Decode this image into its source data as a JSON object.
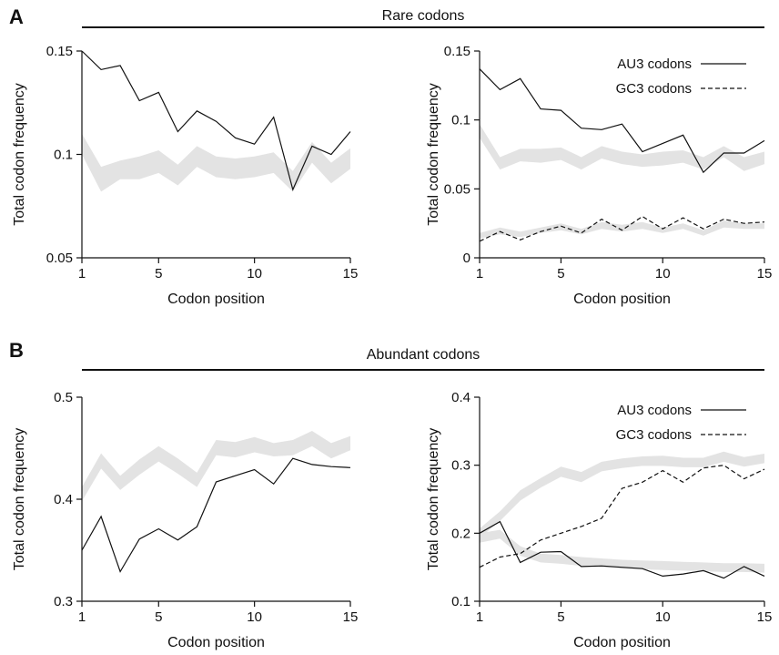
{
  "panels": {
    "A": {
      "letter": "A",
      "section_title": "Rare codons"
    },
    "B": {
      "letter": "B",
      "section_title": "Abundant codons"
    }
  },
  "colors": {
    "line": "#111111",
    "band": "#e3e3e3",
    "axis": "#111111"
  },
  "chart_data": [
    {
      "id": "A-left",
      "type": "line",
      "xlabel": "Codon position",
      "ylabel": "Total codon frequency",
      "xlim": [
        1,
        15
      ],
      "ylim": [
        0.05,
        0.15
      ],
      "xticks": [
        1,
        5,
        10,
        15
      ],
      "xtick_labels": [
        "1",
        "5",
        "10",
        "15"
      ],
      "yticks": [
        0.05,
        0.1,
        0.15
      ],
      "ytick_labels": [
        "0.05",
        "0.1",
        "0.15"
      ],
      "legend": null,
      "series": [
        {
          "style": "solid",
          "x": [
            1,
            2,
            3,
            4,
            5,
            6,
            7,
            8,
            9,
            10,
            11,
            12,
            13,
            14,
            15
          ],
          "y": [
            0.15,
            0.141,
            0.143,
            0.126,
            0.13,
            0.111,
            0.121,
            0.116,
            0.108,
            0.105,
            0.118,
            0.083,
            0.104,
            0.1,
            0.111
          ]
        }
      ],
      "bands": [
        {
          "x": [
            1,
            2,
            3,
            4,
            5,
            6,
            7,
            8,
            9,
            10,
            11,
            12,
            13,
            14,
            15
          ],
          "lower": [
            0.1,
            0.082,
            0.088,
            0.088,
            0.091,
            0.085,
            0.094,
            0.089,
            0.088,
            0.089,
            0.091,
            0.082,
            0.096,
            0.086,
            0.093
          ],
          "upper": [
            0.11,
            0.094,
            0.097,
            0.099,
            0.102,
            0.095,
            0.104,
            0.099,
            0.098,
            0.099,
            0.101,
            0.092,
            0.106,
            0.096,
            0.103
          ]
        }
      ]
    },
    {
      "id": "A-right",
      "type": "line",
      "xlabel": "Codon position",
      "ylabel": "Total codon frequency",
      "xlim": [
        1,
        15
      ],
      "ylim": [
        0,
        0.15
      ],
      "xticks": [
        1,
        5,
        10,
        15
      ],
      "xtick_labels": [
        "1",
        "5",
        "10",
        "15"
      ],
      "yticks": [
        0,
        0.05,
        0.1,
        0.15
      ],
      "ytick_labels": [
        "0",
        "0.05",
        "0.1",
        "0.15"
      ],
      "legend": "top-right",
      "series": [
        {
          "name": "AU3 codons",
          "style": "solid",
          "x": [
            1,
            2,
            3,
            4,
            5,
            6,
            7,
            8,
            9,
            10,
            11,
            12,
            13,
            14,
            15
          ],
          "y": [
            0.137,
            0.122,
            0.13,
            0.108,
            0.107,
            0.094,
            0.093,
            0.097,
            0.077,
            0.083,
            0.089,
            0.062,
            0.076,
            0.076,
            0.085
          ]
        },
        {
          "name": "GC3 codons",
          "style": "dashed",
          "x": [
            1,
            2,
            3,
            4,
            5,
            6,
            7,
            8,
            9,
            10,
            11,
            12,
            13,
            14,
            15
          ],
          "y": [
            0.012,
            0.019,
            0.013,
            0.019,
            0.023,
            0.018,
            0.028,
            0.02,
            0.03,
            0.021,
            0.029,
            0.021,
            0.028,
            0.025,
            0.026
          ]
        }
      ],
      "bands": [
        {
          "x": [
            1,
            2,
            3,
            4,
            5,
            6,
            7,
            8,
            9,
            10,
            11,
            12,
            13,
            14,
            15
          ],
          "lower": [
            0.087,
            0.064,
            0.07,
            0.069,
            0.071,
            0.064,
            0.072,
            0.068,
            0.066,
            0.067,
            0.069,
            0.064,
            0.073,
            0.063,
            0.068
          ],
          "upper": [
            0.097,
            0.073,
            0.079,
            0.079,
            0.08,
            0.073,
            0.081,
            0.077,
            0.075,
            0.077,
            0.078,
            0.073,
            0.081,
            0.073,
            0.077
          ]
        },
        {
          "x": [
            1,
            2,
            3,
            4,
            5,
            6,
            7,
            8,
            9,
            10,
            11,
            12,
            13,
            14,
            15
          ],
          "lower": [
            0.014,
            0.017,
            0.015,
            0.018,
            0.02,
            0.017,
            0.021,
            0.019,
            0.021,
            0.018,
            0.021,
            0.016,
            0.022,
            0.021,
            0.021
          ],
          "upper": [
            0.018,
            0.022,
            0.019,
            0.022,
            0.025,
            0.021,
            0.026,
            0.024,
            0.026,
            0.022,
            0.025,
            0.02,
            0.027,
            0.025,
            0.025
          ]
        }
      ]
    },
    {
      "id": "B-left",
      "type": "line",
      "xlabel": "Codon position",
      "ylabel": "Total codon frequency",
      "xlim": [
        1,
        15
      ],
      "ylim": [
        0.3,
        0.5
      ],
      "xticks": [
        1,
        5,
        10,
        15
      ],
      "xtick_labels": [
        "1",
        "5",
        "10",
        "15"
      ],
      "yticks": [
        0.3,
        0.4,
        0.5
      ],
      "ytick_labels": [
        "0.3",
        "0.4",
        "0.5"
      ],
      "legend": null,
      "series": [
        {
          "style": "solid",
          "x": [
            1,
            2,
            3,
            4,
            5,
            6,
            7,
            8,
            9,
            10,
            11,
            12,
            13,
            14,
            15
          ],
          "y": [
            0.35,
            0.383,
            0.329,
            0.361,
            0.371,
            0.36,
            0.373,
            0.417,
            0.423,
            0.429,
            0.415,
            0.44,
            0.434,
            0.432,
            0.431
          ]
        }
      ],
      "bands": [
        {
          "x": [
            1,
            2,
            3,
            4,
            5,
            6,
            7,
            8,
            9,
            10,
            11,
            12,
            13,
            14,
            15
          ],
          "lower": [
            0.398,
            0.43,
            0.409,
            0.424,
            0.437,
            0.425,
            0.412,
            0.443,
            0.441,
            0.446,
            0.442,
            0.443,
            0.452,
            0.44,
            0.448
          ],
          "upper": [
            0.412,
            0.445,
            0.423,
            0.439,
            0.452,
            0.44,
            0.426,
            0.458,
            0.456,
            0.461,
            0.455,
            0.458,
            0.467,
            0.455,
            0.462
          ]
        }
      ]
    },
    {
      "id": "B-right",
      "type": "line",
      "xlabel": "Codon position",
      "ylabel": "Total codon frequency",
      "xlim": [
        1,
        15
      ],
      "ylim": [
        0.1,
        0.4
      ],
      "xticks": [
        1,
        5,
        10,
        15
      ],
      "xtick_labels": [
        "1",
        "5",
        "10",
        "15"
      ],
      "yticks": [
        0.1,
        0.2,
        0.3,
        0.4
      ],
      "ytick_labels": [
        "0.1",
        "0.2",
        "0.3",
        "0.4"
      ],
      "legend": "top-right",
      "series": [
        {
          "name": "AU3 codons",
          "style": "solid",
          "x": [
            1,
            2,
            3,
            4,
            5,
            6,
            7,
            8,
            9,
            10,
            11,
            12,
            13,
            14,
            15
          ],
          "y": [
            0.2,
            0.217,
            0.157,
            0.172,
            0.173,
            0.151,
            0.152,
            0.15,
            0.148,
            0.137,
            0.14,
            0.145,
            0.134,
            0.151,
            0.137
          ]
        },
        {
          "name": "GC3 codons",
          "style": "dashed",
          "x": [
            1,
            2,
            3,
            4,
            5,
            6,
            7,
            8,
            9,
            10,
            11,
            12,
            13,
            14,
            15
          ],
          "y": [
            0.15,
            0.165,
            0.17,
            0.19,
            0.2,
            0.21,
            0.222,
            0.266,
            0.275,
            0.292,
            0.275,
            0.296,
            0.3,
            0.28,
            0.294
          ]
        }
      ],
      "bands": [
        {
          "x": [
            1,
            2,
            3,
            4,
            5,
            6,
            7,
            8,
            9,
            10,
            11,
            12,
            13,
            14,
            15
          ],
          "lower": [
            0.193,
            0.218,
            0.248,
            0.267,
            0.283,
            0.275,
            0.291,
            0.296,
            0.299,
            0.299,
            0.297,
            0.297,
            0.305,
            0.298,
            0.303
          ],
          "upper": [
            0.207,
            0.232,
            0.263,
            0.281,
            0.298,
            0.29,
            0.305,
            0.31,
            0.313,
            0.314,
            0.311,
            0.311,
            0.32,
            0.312,
            0.317
          ]
        },
        {
          "x": [
            1,
            2,
            3,
            4,
            5,
            6,
            7,
            8,
            9,
            10,
            11,
            12,
            13,
            14,
            15
          ],
          "lower": [
            0.186,
            0.192,
            0.167,
            0.157,
            0.155,
            0.152,
            0.15,
            0.148,
            0.147,
            0.146,
            0.145,
            0.144,
            0.143,
            0.143,
            0.142
          ],
          "upper": [
            0.2,
            0.205,
            0.181,
            0.17,
            0.168,
            0.165,
            0.163,
            0.161,
            0.16,
            0.159,
            0.158,
            0.157,
            0.156,
            0.156,
            0.155
          ]
        }
      ]
    }
  ]
}
